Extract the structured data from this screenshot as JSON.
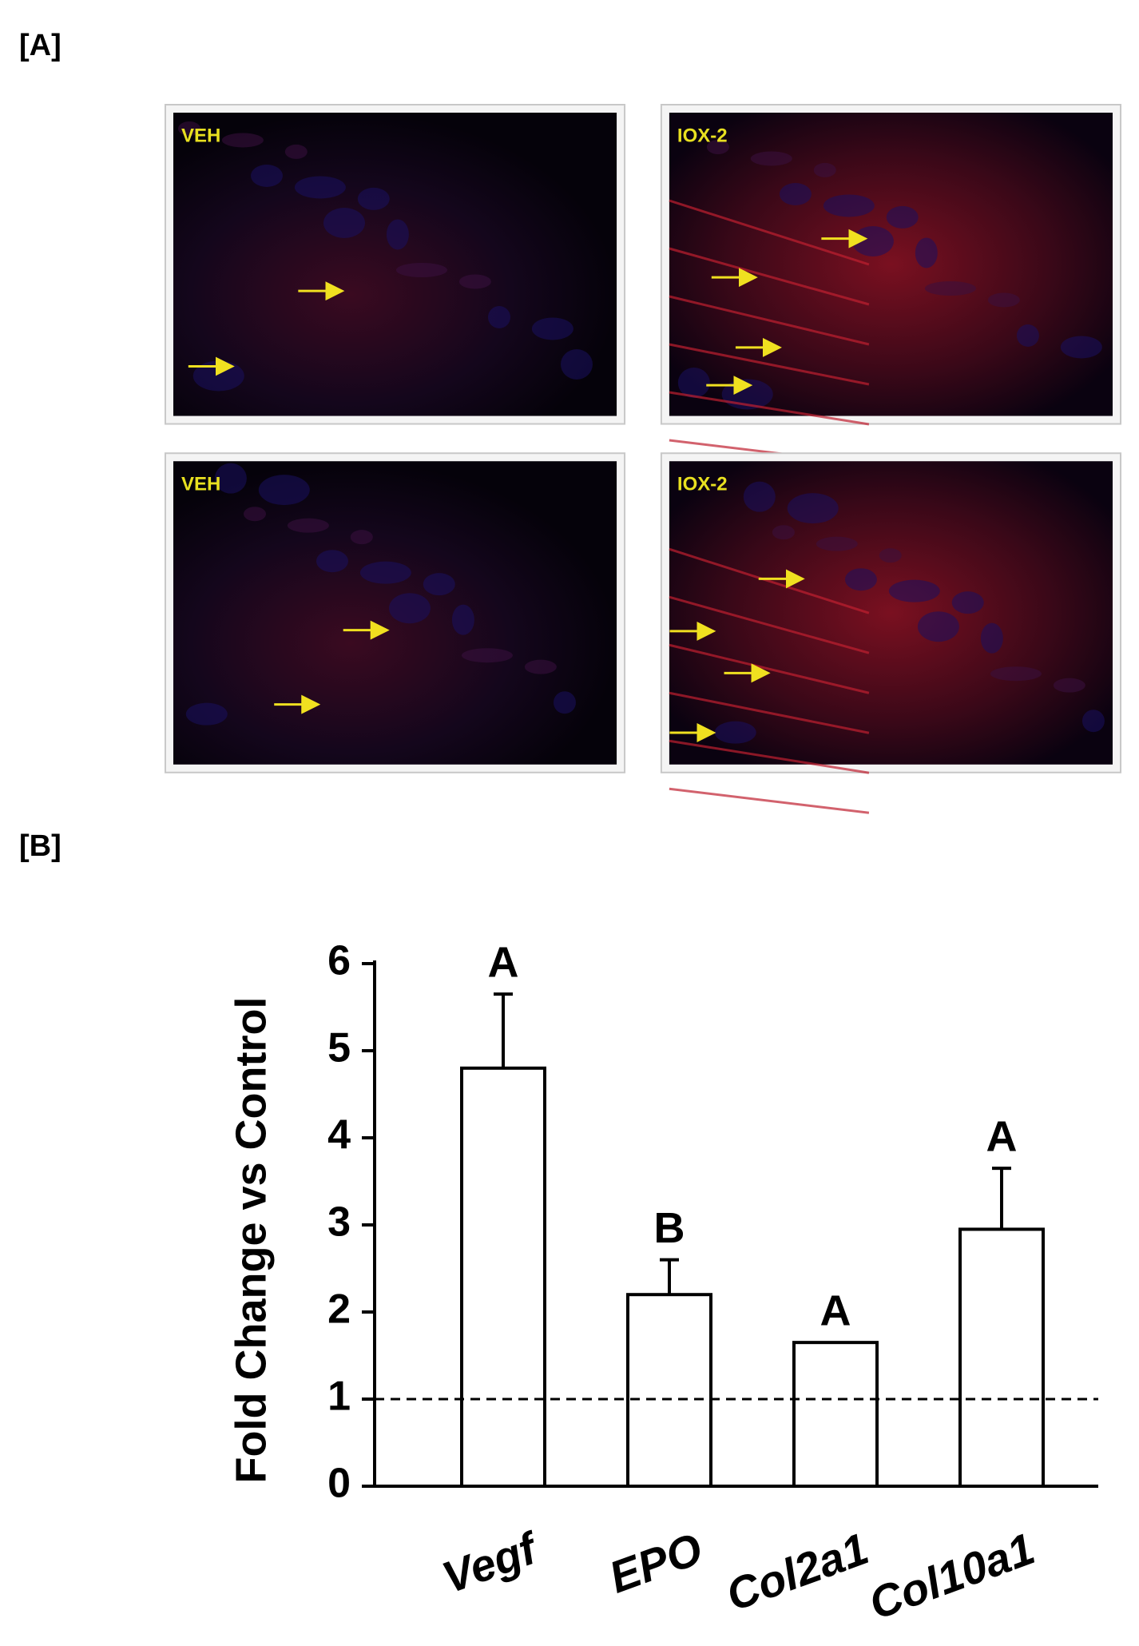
{
  "panel_labels": [
    "[A]",
    "[B]"
  ],
  "panels": [
    {
      "label": "VEH"
    },
    {
      "label": "IOX-2"
    },
    {
      "label": "VEH"
    },
    {
      "label": "IOX-2"
    }
  ],
  "chart_data": {
    "type": "bar",
    "y_label": "Fold Change vs Control",
    "categories": [
      "Vegf",
      "EPO",
      "Col2a1",
      "Col10a1"
    ],
    "values": [
      4.8,
      2.2,
      1.65,
      2.95
    ],
    "errors": [
      0.85,
      0.4,
      null,
      0.7
    ],
    "annotations": [
      "A",
      "B",
      "A",
      "A"
    ],
    "reference_line": 1,
    "color": "#ffffff",
    "ylim": [
      0,
      6
    ],
    "yticks": [
      0,
      1,
      2,
      3,
      4,
      5,
      6
    ]
  }
}
